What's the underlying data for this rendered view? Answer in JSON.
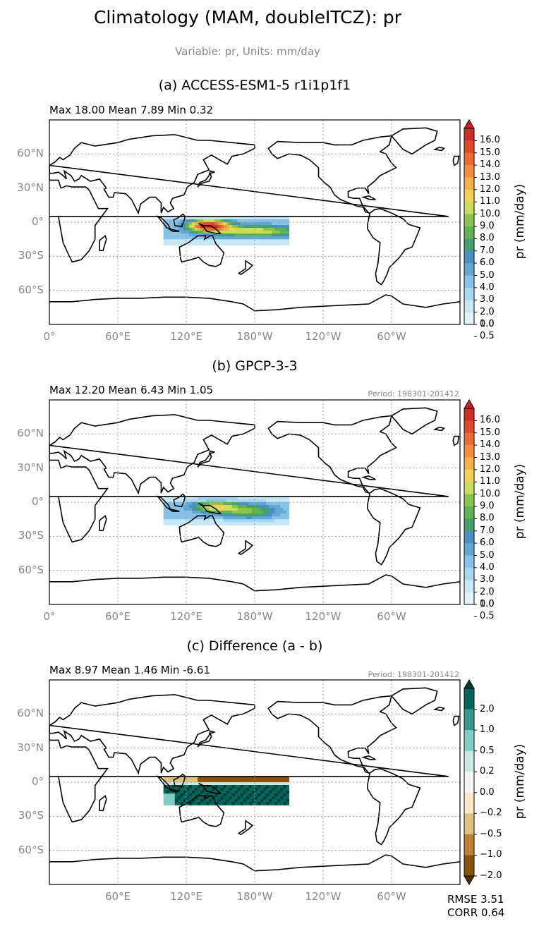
{
  "figure": {
    "title": "Climatology (MAM, doubleITCZ): pr",
    "subtitle": "Variable: pr, Units: mm/day"
  },
  "colors": {
    "precip_levels": [
      "#ffffff",
      "#e0f3fb",
      "#c5e7f6",
      "#a6d6f0",
      "#86c1e6",
      "#62a8d6",
      "#4a90c3",
      "#45a070",
      "#5db451",
      "#8cc54c",
      "#c9dc5b",
      "#f0d356",
      "#f6b04a",
      "#f28e3e",
      "#ec6b33",
      "#e04a2a",
      "#cf2d26"
    ],
    "precip_extend": "#c92324",
    "diff_levels": [
      "#543005",
      "#8c510a",
      "#bf812d",
      "#dfc27d",
      "#f6e8c3",
      "#f5f5f5",
      "#c7eae5",
      "#80cdc1",
      "#35978f",
      "#01665e",
      "#003c30"
    ]
  },
  "panels": [
    {
      "id": "a",
      "title": "(a) ACCESS-ESM1-5 r1i1p1f1",
      "stats": "Max 18.00 Mean 7.89 Min 0.32",
      "period": "",
      "colorbar_label": "pr (mm/day)",
      "colorbar_ticks": [
        "16.0",
        "15.0",
        "14.0",
        "13.0",
        "12.0",
        "11.0",
        "10.0",
        "9.0",
        "8.0",
        "7.0",
        "6.0",
        "5.0",
        "4.0",
        "3.0",
        "2.0",
        "1.0",
        "0.5",
        "0.0"
      ]
    },
    {
      "id": "b",
      "title": "(b) GPCP-3-3",
      "stats": "Max 12.20 Mean 6.43 Min 1.05",
      "period": "Period: 198301-201412",
      "colorbar_label": "pr (mm/day)",
      "colorbar_ticks": [
        "16.0",
        "15.0",
        "14.0",
        "13.0",
        "12.0",
        "11.0",
        "10.0",
        "9.0",
        "8.0",
        "7.0",
        "6.0",
        "5.0",
        "4.0",
        "3.0",
        "2.0",
        "1.0",
        "0.5",
        "0.0"
      ]
    },
    {
      "id": "c",
      "title": "(c) Difference (a - b)",
      "stats": "Max 8.97 Mean 1.46 Min -6.61",
      "period": "Period: 198301-201412",
      "colorbar_label": "pr (mm/day)",
      "colorbar_ticks": [
        "2.0",
        "1.0",
        "0.5",
        "0.2",
        "0.0",
        "−0.2",
        "−0.5",
        "−1.0",
        "−2.0"
      ],
      "metrics": [
        "RMSE 3.51",
        "CORR 0.64"
      ]
    }
  ],
  "axes": {
    "lat_ticks": [
      "60°N",
      "30°N",
      "0°",
      "30°S",
      "60°S"
    ],
    "lon_ticks_ab": [
      "0°",
      "60°E",
      "120°E",
      "180°W",
      "120°W",
      "60°W"
    ],
    "lon_ticks_c": [
      "60°E",
      "120°E",
      "180°W",
      "120°W",
      "60°W"
    ]
  },
  "chart_data": {
    "type": "heatmap",
    "title": "Climatology (MAM, doubleITCZ): pr",
    "region": {
      "lon": [
        100,
        210
      ],
      "lat": [
        -20,
        5
      ]
    },
    "xlim": [
      0,
      360
    ],
    "ylim": [
      -90,
      90
    ],
    "grid": true,
    "panels": [
      {
        "name": "(a) ACCESS-ESM1-5 r1i1p1f1",
        "max": 18.0,
        "mean": 7.89,
        "min": 0.32,
        "levels": [
          0.0,
          0.5,
          1.0,
          2.0,
          3.0,
          4.0,
          5.0,
          6.0,
          7.0,
          8.0,
          9.0,
          10.0,
          11.0,
          12.0,
          13.0,
          14.0,
          15.0,
          16.0
        ]
      },
      {
        "name": "(b) GPCP-3-3",
        "max": 12.2,
        "mean": 6.43,
        "min": 1.05,
        "levels": [
          0.0,
          0.5,
          1.0,
          2.0,
          3.0,
          4.0,
          5.0,
          6.0,
          7.0,
          8.0,
          9.0,
          10.0,
          11.0,
          12.0,
          13.0,
          14.0,
          15.0,
          16.0
        ]
      },
      {
        "name": "(c) Difference (a - b)",
        "max": 8.97,
        "mean": 1.46,
        "min": -6.61,
        "rmse": 3.51,
        "corr": 0.64,
        "levels": [
          -2.0,
          -1.0,
          -0.5,
          -0.2,
          0.0,
          0.2,
          0.5,
          1.0,
          2.0
        ]
      }
    ]
  }
}
